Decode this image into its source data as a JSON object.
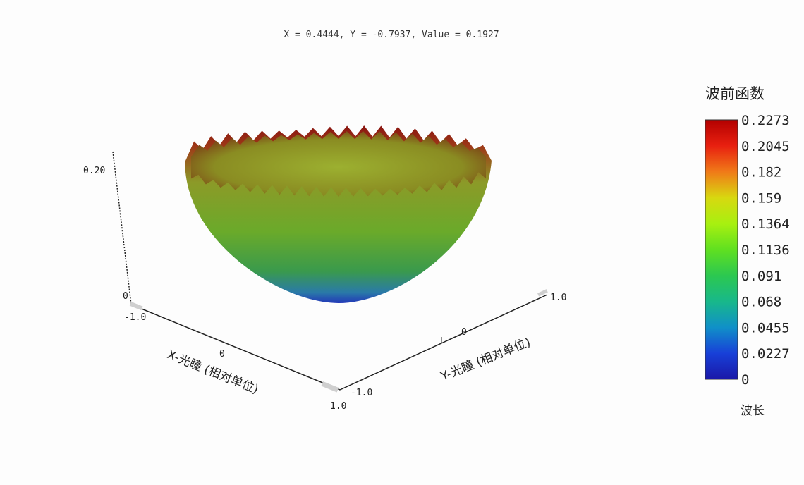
{
  "readout": {
    "text": "X = 0.4444, Y = -0.7937, Value = 0.1927"
  },
  "chart_data": {
    "type": "surface3d",
    "surface_shape": "paraboloid bowl with jagged rim",
    "x_axis": {
      "label": "X-光瞳 (相对单位)",
      "range": [
        -1.0,
        1.0
      ],
      "ticks": [
        "-1.0",
        "0",
        "1.0"
      ]
    },
    "y_axis": {
      "label": "Y-光瞳 (相对单位)",
      "range": [
        -1.0,
        1.0
      ],
      "ticks": [
        "-1.0",
        "0",
        "1.0"
      ]
    },
    "z_axis": {
      "range": [
        0,
        0.2273
      ],
      "ticks": [
        "0",
        "0.20"
      ]
    },
    "colorbar": {
      "title": "波前函数",
      "unit": "波长",
      "min": 0,
      "max": 0.2273,
      "tick_labels": [
        "0.2273",
        "0.2045",
        "0.182",
        "0.159",
        "0.1364",
        "0.1136",
        "0.091",
        "0.068",
        "0.0455",
        "0.0227",
        "0"
      ],
      "colors": [
        "#b30000",
        "#e82010",
        "#f07a18",
        "#d8d810",
        "#a8f010",
        "#60e020",
        "#2cc850",
        "#18b88a",
        "#1090c8",
        "#1840d8",
        "#1a18a8"
      ]
    }
  }
}
